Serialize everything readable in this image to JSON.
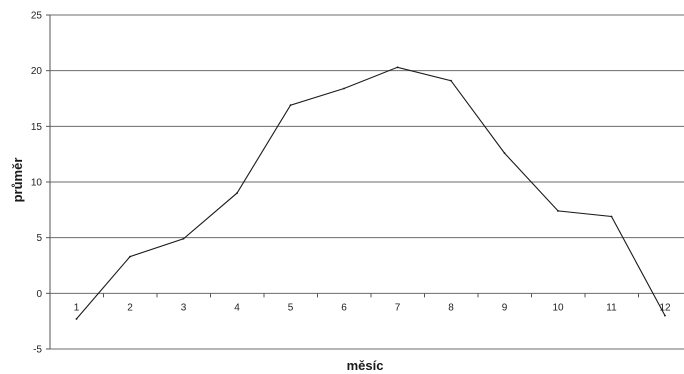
{
  "chart_data": {
    "type": "line",
    "title": "",
    "xlabel": "měsíc",
    "ylabel": "průměr",
    "categories": [
      "1",
      "2",
      "3",
      "4",
      "5",
      "6",
      "7",
      "8",
      "9",
      "10",
      "11",
      "12"
    ],
    "series": [
      {
        "values": [
          -2.3,
          3.3,
          4.9,
          9.0,
          16.9,
          18.4,
          20.3,
          19.1,
          12.6,
          7.4,
          6.9,
          -2.0
        ]
      }
    ],
    "ylim": [
      -5,
      25
    ],
    "yticks": [
      -5,
      0,
      5,
      10,
      15,
      20,
      25
    ],
    "grid": true,
    "legend": "none",
    "colors": {
      "line": "#1a1a1a",
      "grid": "#6b6b6b",
      "axis": "#555555"
    }
  }
}
